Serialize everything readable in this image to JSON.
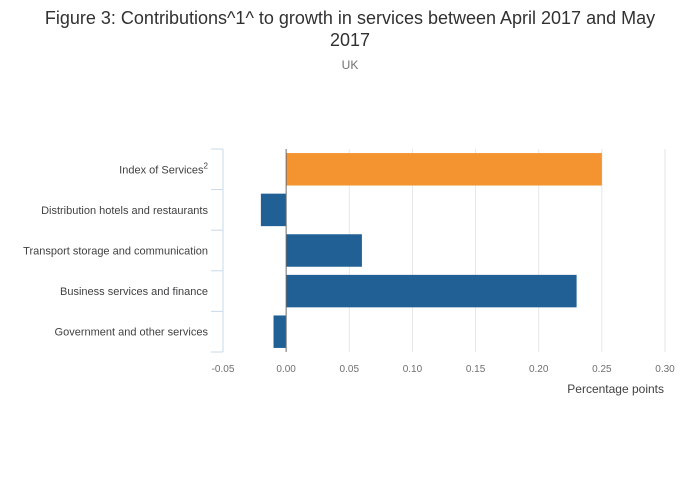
{
  "title": "Figure 3: Contributions^1^ to growth in services between April 2017 and May 2017",
  "subtitle": "UK",
  "chart_data": {
    "type": "bar",
    "orientation": "horizontal",
    "title": "Figure 3: Contributions^1^ to growth in services between April 2017 and May 2017",
    "subtitle": "UK",
    "xlabel": "Percentage points",
    "ylabel": "",
    "xlim": [
      -0.05,
      0.3
    ],
    "xticks": [
      "-0.05",
      "0.00",
      "0.05",
      "0.10",
      "0.15",
      "0.20",
      "0.25",
      "0.30"
    ],
    "xtick_values": [
      -0.05,
      0.0,
      0.05,
      0.1,
      0.15,
      0.2,
      0.25,
      0.3
    ],
    "grid": true,
    "categories": [
      {
        "label": "Index of Services",
        "superscript": "2"
      },
      {
        "label": "Distribution hotels and restaurants",
        "superscript": ""
      },
      {
        "label": "Transport storage and communication",
        "superscript": ""
      },
      {
        "label": "Business services and finance",
        "superscript": ""
      },
      {
        "label": "Government and other services",
        "superscript": ""
      }
    ],
    "values": [
      0.25,
      -0.02,
      0.06,
      0.23,
      -0.01
    ],
    "colors": [
      "#f39431",
      "#206095",
      "#206095",
      "#206095",
      "#206095"
    ]
  }
}
